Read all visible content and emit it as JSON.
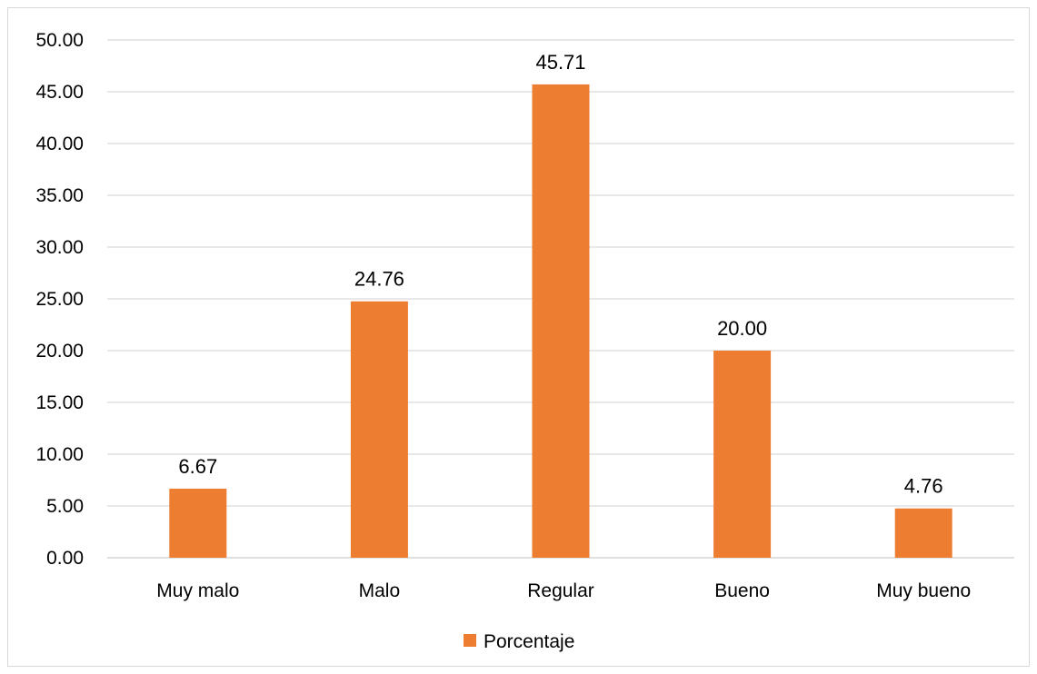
{
  "chart_data": {
    "type": "bar",
    "categories": [
      "Muy malo",
      "Malo",
      "Regular",
      "Bueno",
      "Muy bueno"
    ],
    "series": [
      {
        "name": "Porcentaje",
        "values": [
          6.67,
          24.76,
          45.71,
          20.0,
          4.76
        ],
        "value_labels": [
          "6.67",
          "24.76",
          "45.71",
          "20.00",
          "4.76"
        ],
        "color": "#ed7d31"
      }
    ],
    "yticks": [
      "0.00",
      "5.00",
      "10.00",
      "15.00",
      "20.00",
      "25.00",
      "30.00",
      "35.00",
      "40.00",
      "45.00",
      "50.00"
    ],
    "ylim": [
      0,
      50
    ],
    "grid": true,
    "legend_position": "bottom",
    "gridline_color": "#d9d9d9"
  }
}
